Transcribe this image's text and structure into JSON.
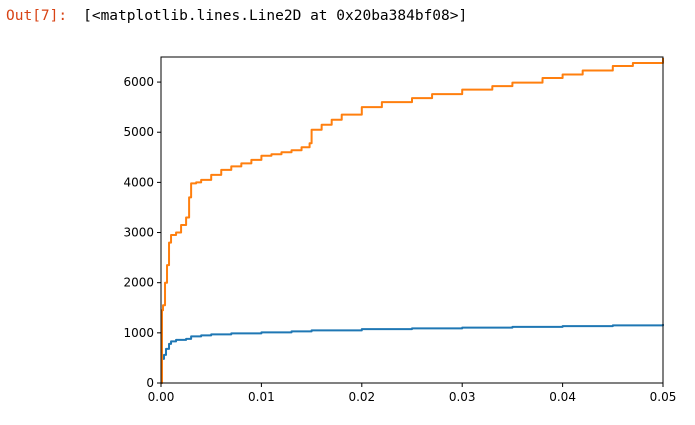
{
  "cell": {
    "prompt": "Out[7]:",
    "output_text": "[<matplotlib.lines.Line2D at 0x20ba384bf08>]"
  },
  "chart_data": {
    "type": "line",
    "title": "",
    "xlabel": "",
    "ylabel": "",
    "xlim": [
      0.0,
      0.05
    ],
    "ylim": [
      0,
      6500
    ],
    "xticks": [
      "0.00",
      "0.01",
      "0.02",
      "0.03",
      "0.04",
      "0.05"
    ],
    "yticks": [
      "0",
      "1000",
      "2000",
      "3000",
      "4000",
      "5000",
      "6000"
    ],
    "grid": false,
    "legend": "none",
    "series": [
      {
        "color": "#1f77b4",
        "x": [
          0.0,
          0.0001,
          0.0003,
          0.0005,
          0.0008,
          0.001,
          0.0015,
          0.0025,
          0.003,
          0.004,
          0.005,
          0.007,
          0.01,
          0.013,
          0.015,
          0.02,
          0.025,
          0.03,
          0.035,
          0.04,
          0.045,
          0.05
        ],
        "y": [
          0,
          480,
          560,
          680,
          780,
          830,
          860,
          880,
          930,
          950,
          970,
          990,
          1010,
          1030,
          1050,
          1075,
          1090,
          1105,
          1120,
          1135,
          1150,
          1175
        ]
      },
      {
        "color": "#ff7f0e",
        "x": [
          0.0,
          0.0001,
          0.0002,
          0.0004,
          0.0006,
          0.0008,
          0.001,
          0.0015,
          0.002,
          0.0025,
          0.0028,
          0.003,
          0.0035,
          0.004,
          0.005,
          0.006,
          0.007,
          0.008,
          0.009,
          0.01,
          0.011,
          0.012,
          0.013,
          0.014,
          0.0148,
          0.015,
          0.016,
          0.017,
          0.018,
          0.02,
          0.022,
          0.025,
          0.027,
          0.03,
          0.033,
          0.035,
          0.038,
          0.04,
          0.042,
          0.045,
          0.047,
          0.05
        ],
        "y": [
          0,
          1450,
          1550,
          2000,
          2350,
          2800,
          2950,
          3000,
          3150,
          3300,
          3700,
          3980,
          4000,
          4050,
          4150,
          4250,
          4320,
          4380,
          4450,
          4530,
          4560,
          4600,
          4640,
          4700,
          4780,
          5050,
          5150,
          5250,
          5350,
          5500,
          5600,
          5680,
          5760,
          5850,
          5920,
          5990,
          6080,
          6150,
          6230,
          6320,
          6380,
          6480
        ]
      }
    ]
  }
}
